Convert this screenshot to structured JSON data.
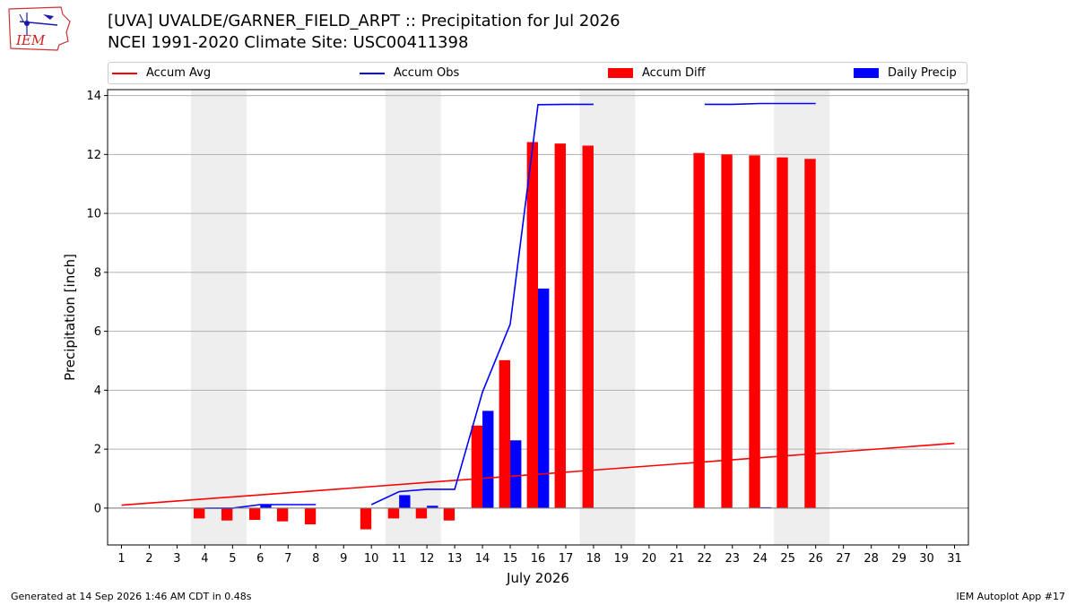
{
  "header": {
    "title_line1": "[UVA] UVALDE/GARNER_FIELD_ARPT :: Precipitation for Jul 2026",
    "title_line2": "NCEI 1991-2020 Climate Site: USC00411398",
    "logo_text": "IEM"
  },
  "footer": {
    "generated": "Generated at 14 Sep 2026 1:46 AM CDT in 0.48s",
    "app": "IEM Autoplot App #17"
  },
  "colors": {
    "accum_avg": "#ff0000",
    "accum_obs": "#0000ff",
    "accum_diff": "#ff0000",
    "daily_precip": "#0000ff",
    "weekend_shade": "#eeeeee",
    "grid": "#b0b0b0"
  },
  "chart_data": {
    "type": "bar",
    "xlabel": "July 2026",
    "ylabel": "Precipitation [inch]",
    "xlim": [
      0.5,
      31.5
    ],
    "ylim": [
      -1.25,
      14.2
    ],
    "yticks": [
      0,
      2,
      4,
      6,
      8,
      10,
      12,
      14
    ],
    "xticks": [
      1,
      2,
      3,
      4,
      5,
      6,
      7,
      8,
      9,
      10,
      11,
      12,
      13,
      14,
      15,
      16,
      17,
      18,
      19,
      20,
      21,
      22,
      23,
      24,
      25,
      26,
      27,
      28,
      29,
      30,
      31
    ],
    "grid": "horizontal",
    "legend_position": "top",
    "weekend_spans": [
      [
        3.5,
        5.5
      ],
      [
        10.5,
        12.5
      ],
      [
        17.5,
        19.5
      ],
      [
        24.5,
        26.5
      ]
    ],
    "legend": [
      "Accum Avg",
      "Accum Obs",
      "Accum Diff",
      "Daily Precip"
    ],
    "series": [
      {
        "name": "Accum Avg",
        "kind": "line",
        "points": [
          [
            1,
            0.1
          ],
          [
            31,
            2.2
          ]
        ]
      },
      {
        "name": "Accum Obs",
        "kind": "line",
        "segments": [
          [
            [
              4,
              0.0
            ],
            [
              5,
              0.0
            ],
            [
              6,
              0.12
            ],
            [
              7,
              0.12
            ],
            [
              8,
              0.12
            ]
          ],
          [
            [
              10,
              0.12
            ],
            [
              11,
              0.56
            ],
            [
              12,
              0.64
            ],
            [
              13,
              0.64
            ],
            [
              14,
              3.94
            ],
            [
              15,
              6.24
            ],
            [
              16,
              13.69
            ],
            [
              17,
              13.7
            ],
            [
              18,
              13.7
            ]
          ],
          [
            [
              22,
              13.7
            ],
            [
              23,
              13.7
            ],
            [
              24,
              13.73
            ],
            [
              25,
              13.73
            ],
            [
              26,
              13.73
            ]
          ]
        ]
      },
      {
        "name": "Accum Diff",
        "kind": "bar",
        "x": [
          4,
          5,
          6,
          7,
          8,
          10,
          11,
          12,
          13,
          14,
          15,
          16,
          17,
          18,
          22,
          23,
          24,
          25,
          26
        ],
        "values": [
          -0.35,
          -0.42,
          -0.4,
          -0.45,
          -0.55,
          -0.72,
          -0.35,
          -0.35,
          -0.42,
          2.8,
          5.02,
          12.42,
          12.37,
          12.3,
          12.05,
          12.0,
          11.97,
          11.9,
          11.85
        ]
      },
      {
        "name": "Daily Precip",
        "kind": "bar",
        "x": [
          6,
          11,
          12,
          14,
          15,
          16,
          24
        ],
        "values": [
          0.12,
          0.44,
          0.08,
          3.3,
          2.3,
          7.45,
          0.03
        ]
      }
    ]
  }
}
